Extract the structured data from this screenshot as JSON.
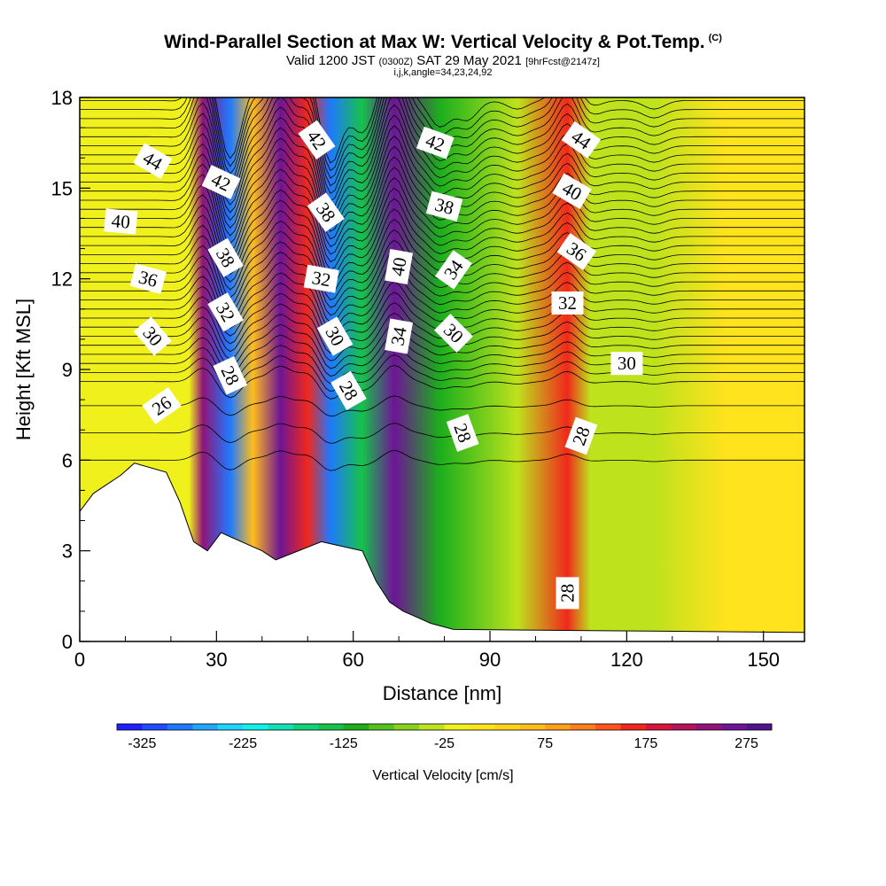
{
  "header": {
    "title": "Wind-Parallel Section at Max W: Vertical Velocity & Pot.Temp.",
    "title_mark": "(C)",
    "valid_prefix": "Valid 1200 JST",
    "valid_utc": "(0300Z)",
    "valid_date": "SAT 29 May 2021",
    "forecast": "[9hrFcst@2147z]",
    "indices": "i,j,k,angle=34,23,24,92"
  },
  "chart_data": {
    "type": "heatmap",
    "xlabel": "Distance [nm]",
    "ylabel": "Height [Kft MSL]",
    "xlim": [
      0,
      159
    ],
    "ylim": [
      0,
      18
    ],
    "xticks": [
      "0",
      "30",
      "60",
      "90",
      "120",
      "150"
    ],
    "yticks": [
      "0",
      "3",
      "6",
      "9",
      "12",
      "15",
      "18"
    ],
    "colorbar": {
      "label": "Vertical Velocity [cm/s]",
      "ticks": [
        "-325",
        "-225",
        "-125",
        "-25",
        "75",
        "175",
        "275"
      ],
      "range": [
        -350,
        300
      ],
      "step": 25,
      "colors": [
        "#1f1fff",
        "#1f4cff",
        "#1f79ff",
        "#1fa6ff",
        "#1fd3ff",
        "#14f0e8",
        "#14e0b4",
        "#14d27a",
        "#16c24a",
        "#1cae1c",
        "#52c21c",
        "#88d21c",
        "#bee21c",
        "#f0f01c",
        "#ffe31c",
        "#ffd21c",
        "#ffbd1c",
        "#ff9f1c",
        "#ff7f1c",
        "#ff551c",
        "#f0281c",
        "#d8143c",
        "#b4145a",
        "#901478",
        "#6e1496",
        "#50148c"
      ]
    },
    "velocity_bands": [
      {
        "x": 24,
        "w": -20
      },
      {
        "x": 27,
        "w": 240
      },
      {
        "x": 33,
        "w": -280
      },
      {
        "x": 38,
        "w": 60
      },
      {
        "x": 44,
        "w": 250
      },
      {
        "x": 50,
        "w": 150
      },
      {
        "x": 55,
        "w": -300
      },
      {
        "x": 62,
        "w": -150
      },
      {
        "x": 69,
        "w": 270
      },
      {
        "x": 79,
        "w": -120
      },
      {
        "x": 85,
        "w": -90
      },
      {
        "x": 96,
        "w": -40
      },
      {
        "x": 107,
        "w": 170
      },
      {
        "x": 112,
        "w": -30
      },
      {
        "x": 126,
        "w": -40
      },
      {
        "x": 142,
        "w": 0
      }
    ],
    "terrain_kft": [
      [
        0,
        4.3
      ],
      [
        3,
        4.9
      ],
      [
        6,
        5.2
      ],
      [
        9,
        5.5
      ],
      [
        12,
        5.9
      ],
      [
        19,
        5.6
      ],
      [
        22,
        4.6
      ],
      [
        25,
        3.3
      ],
      [
        28,
        3.0
      ],
      [
        31,
        3.6
      ],
      [
        40,
        3.0
      ],
      [
        43,
        2.7
      ],
      [
        53,
        3.3
      ],
      [
        62,
        3.0
      ],
      [
        65,
        2.0
      ],
      [
        68,
        1.3
      ],
      [
        71,
        1.0
      ],
      [
        74,
        0.8
      ],
      [
        77,
        0.6
      ],
      [
        82,
        0.4
      ],
      [
        159,
        0.3
      ]
    ],
    "theta_labels": [
      {
        "text": "44",
        "x": 16,
        "y": 15.9,
        "rot": 30
      },
      {
        "text": "42",
        "x": 31,
        "y": 15.2,
        "rot": 25
      },
      {
        "text": "40",
        "x": 9,
        "y": 13.9,
        "rot": 5
      },
      {
        "text": "38",
        "x": 32,
        "y": 12.7,
        "rot": 60
      },
      {
        "text": "36",
        "x": 15,
        "y": 12.0,
        "rot": 15
      },
      {
        "text": "32",
        "x": 32,
        "y": 10.9,
        "rot": 60
      },
      {
        "text": "30",
        "x": 16,
        "y": 10.1,
        "rot": 50
      },
      {
        "text": "28",
        "x": 33,
        "y": 8.8,
        "rot": 65
      },
      {
        "text": "26",
        "x": 18,
        "y": 7.8,
        "rot": -35
      },
      {
        "text": "42",
        "x": 52,
        "y": 16.6,
        "rot": 55
      },
      {
        "text": "38",
        "x": 54,
        "y": 14.2,
        "rot": 55
      },
      {
        "text": "32",
        "x": 53,
        "y": 12.0,
        "rot": 10
      },
      {
        "text": "30",
        "x": 56,
        "y": 10.1,
        "rot": 60
      },
      {
        "text": "28",
        "x": 59,
        "y": 8.3,
        "rot": 60
      },
      {
        "text": "42",
        "x": 78,
        "y": 16.5,
        "rot": 20
      },
      {
        "text": "38",
        "x": 80,
        "y": 14.4,
        "rot": 15
      },
      {
        "text": "40",
        "x": 70,
        "y": 12.4,
        "rot": -80
      },
      {
        "text": "34",
        "x": 82,
        "y": 12.3,
        "rot": -55
      },
      {
        "text": "34",
        "x": 70,
        "y": 10.1,
        "rot": -80
      },
      {
        "text": "30",
        "x": 82,
        "y": 10.2,
        "rot": 45
      },
      {
        "text": "28",
        "x": 84,
        "y": 6.9,
        "rot": 70
      },
      {
        "text": "44",
        "x": 110,
        "y": 16.6,
        "rot": 35
      },
      {
        "text": "40",
        "x": 108,
        "y": 14.9,
        "rot": 30
      },
      {
        "text": "36",
        "x": 109,
        "y": 12.9,
        "rot": 35
      },
      {
        "text": "32",
        "x": 107,
        "y": 11.2,
        "rot": 0
      },
      {
        "text": "30",
        "x": 120,
        "y": 9.2,
        "rot": 0
      },
      {
        "text": "28",
        "x": 110,
        "y": 6.8,
        "rot": -70
      },
      {
        "text": "28",
        "x": 107,
        "y": 1.6,
        "rot": -90
      }
    ]
  }
}
